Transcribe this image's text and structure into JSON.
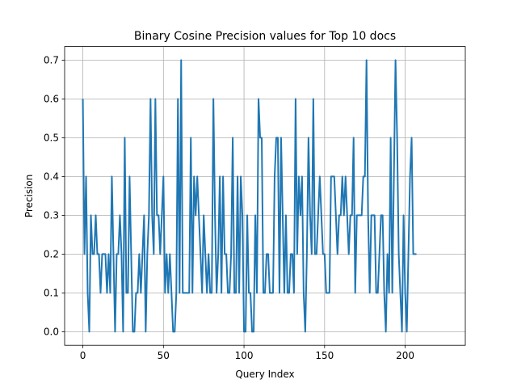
{
  "chart_data": {
    "type": "line",
    "title": "Binary Cosine Precision values for Top 10 docs",
    "xlabel": "Query Index",
    "ylabel": "Precision",
    "xlim": [
      -11.3,
      237.3
    ],
    "ylim": [
      -0.035,
      0.735
    ],
    "xticks": [
      0,
      50,
      100,
      150,
      200
    ],
    "yticks": [
      0.0,
      0.1,
      0.2,
      0.3,
      0.4,
      0.5,
      0.6,
      0.7
    ],
    "ytick_labels": [
      "0.0",
      "0.1",
      "0.2",
      "0.3",
      "0.4",
      "0.5",
      "0.6",
      "0.7"
    ],
    "grid": true,
    "line_color": "#1f77b4",
    "series": [
      {
        "values": [
          0.6,
          0.2,
          0.4,
          0.1,
          0.0,
          0.3,
          0.2,
          0.2,
          0.3,
          0.2,
          0.2,
          0.1,
          0.2,
          0.2,
          0.2,
          0.1,
          0.2,
          0.1,
          0.4,
          0.2,
          0.0,
          0.2,
          0.2,
          0.3,
          0.2,
          0.0,
          0.5,
          0.1,
          0.1,
          0.4,
          0.2,
          0.0,
          0.0,
          0.1,
          0.1,
          0.2,
          0.1,
          0.2,
          0.3,
          0.0,
          0.2,
          0.3,
          0.6,
          0.3,
          0.2,
          0.6,
          0.3,
          0.3,
          0.2,
          0.3,
          0.4,
          0.1,
          0.2,
          0.1,
          0.2,
          0.1,
          0.0,
          0.0,
          0.1,
          0.6,
          0.1,
          0.7,
          0.1,
          0.1,
          0.1,
          0.1,
          0.1,
          0.5,
          0.1,
          0.4,
          0.3,
          0.4,
          0.3,
          0.2,
          0.1,
          0.3,
          0.2,
          0.1,
          0.2,
          0.1,
          0.1,
          0.6,
          0.3,
          0.1,
          0.2,
          0.4,
          0.1,
          0.4,
          0.2,
          0.2,
          0.1,
          0.1,
          0.2,
          0.5,
          0.1,
          0.1,
          0.4,
          0.1,
          0.4,
          0.3,
          0.0,
          0.0,
          0.3,
          0.1,
          0.1,
          0.0,
          0.0,
          0.3,
          0.1,
          0.6,
          0.5,
          0.5,
          0.1,
          0.1,
          0.2,
          0.2,
          0.1,
          0.1,
          0.1,
          0.4,
          0.5,
          0.5,
          0.1,
          0.5,
          0.3,
          0.1,
          0.3,
          0.1,
          0.1,
          0.2,
          0.2,
          0.1,
          0.6,
          0.2,
          0.4,
          0.3,
          0.4,
          0.1,
          0.0,
          0.2,
          0.5,
          0.3,
          0.2,
          0.6,
          0.2,
          0.2,
          0.3,
          0.4,
          0.3,
          0.2,
          0.2,
          0.1,
          0.1,
          0.1,
          0.4,
          0.4,
          0.4,
          0.3,
          0.2,
          0.3,
          0.3,
          0.4,
          0.3,
          0.4,
          0.3,
          0.2,
          0.3,
          0.3,
          0.5,
          0.1,
          0.3,
          0.3,
          0.3,
          0.3,
          0.4,
          0.4,
          0.7,
          0.3,
          0.1,
          0.3,
          0.3,
          0.3,
          0.1,
          0.1,
          0.2,
          0.3,
          0.3,
          0.1,
          0.0,
          0.2,
          0.1,
          0.5,
          0.1,
          0.4,
          0.7,
          0.5,
          0.2,
          0.1,
          0.0,
          0.3,
          0.1,
          0.0,
          0.2,
          0.4,
          0.5,
          0.2,
          0.2,
          0.2
        ]
      }
    ]
  }
}
